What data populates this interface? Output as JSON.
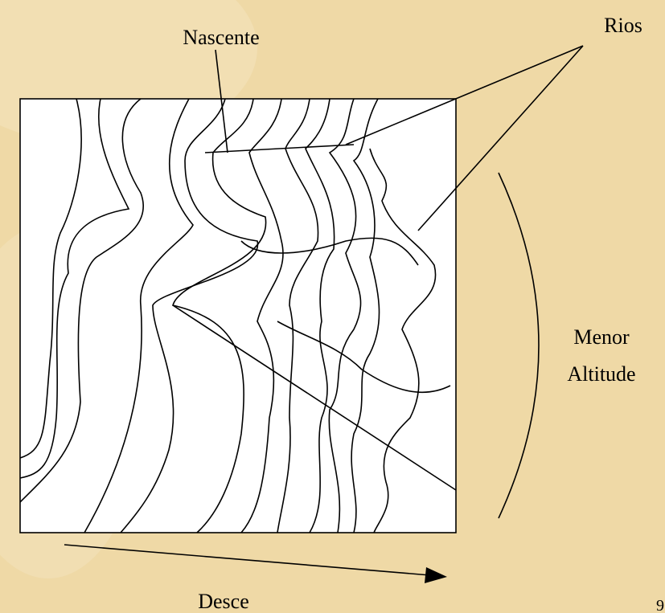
{
  "labels": {
    "source": "Nascente",
    "rivers": "Rios",
    "lower": "Menor",
    "altitude": "Altitude",
    "descends": "Desce",
    "page": "9"
  }
}
